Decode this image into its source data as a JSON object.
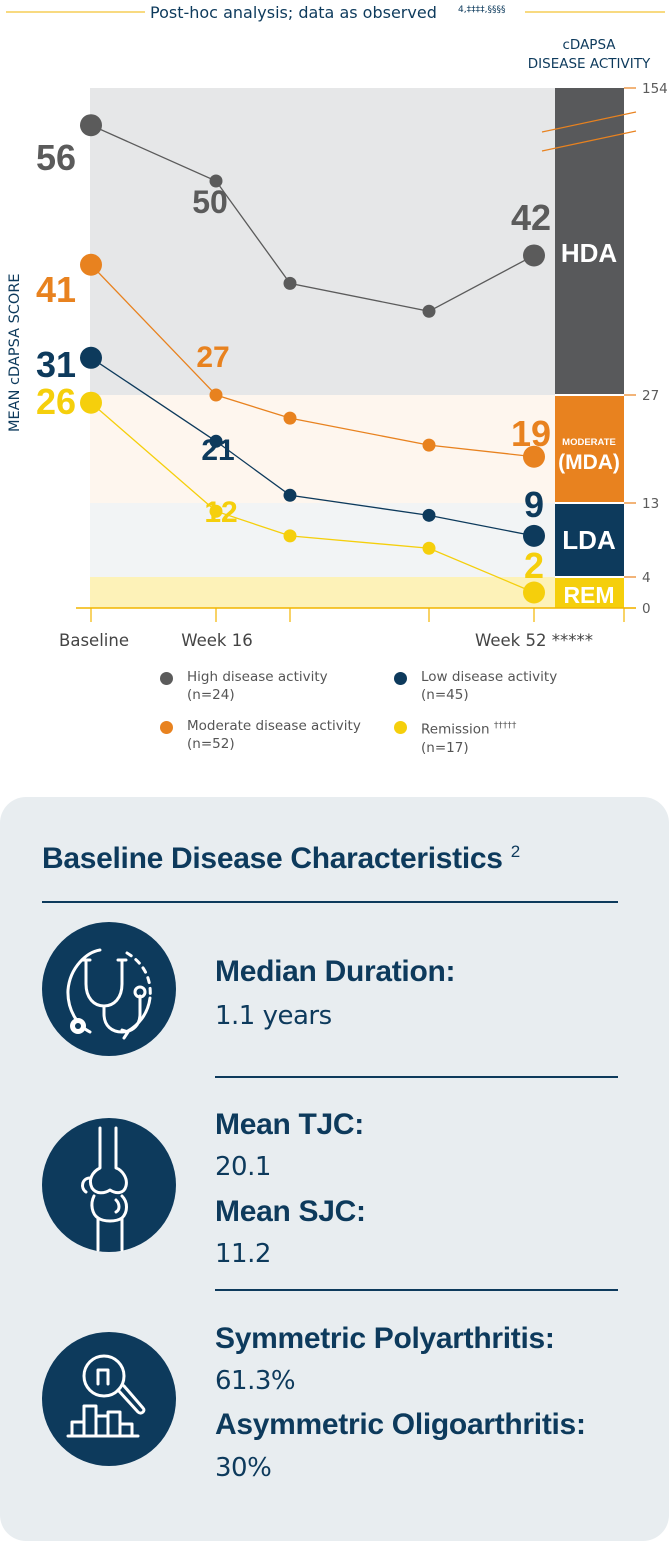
{
  "header": {
    "note": "Post-hoc analysis; data as observed",
    "note_refs": "4,‡‡‡‡,§§§§"
  },
  "chart_data": {
    "type": "line",
    "ylabel": "MEAN cDAPSA SCORE",
    "x_ticks": [
      {
        "x": 0,
        "label": "Baseline"
      },
      {
        "x": 16,
        "label": "Week 16"
      },
      {
        "x": 24,
        "label": ""
      },
      {
        "x": 40,
        "label": ""
      },
      {
        "x": 52,
        "label": "Week 52 *****"
      }
    ],
    "series": [
      {
        "name": "High disease activity",
        "n": "(n=24)",
        "color": "#5b5b5b",
        "x": [
          0,
          16,
          24,
          40,
          52
        ],
        "values": [
          56,
          50,
          39,
          36,
          42
        ],
        "labels": {
          "0": "56",
          "1": "50",
          "4": "42"
        }
      },
      {
        "name": "Moderate disease activity",
        "n": "(n=52)",
        "color": "#e8821f",
        "x": [
          0,
          16,
          24,
          40,
          52
        ],
        "values": [
          41,
          27,
          24,
          20.5,
          19
        ],
        "labels": {
          "0": "41",
          "1": "27",
          "4": "19"
        }
      },
      {
        "name": "Low disease activity",
        "n": "(n=45)",
        "color": "#0d3a5c",
        "x": [
          0,
          16,
          24,
          40,
          52
        ],
        "values": [
          31,
          21,
          14,
          11.5,
          9
        ],
        "labels": {
          "0": "31",
          "1": "21",
          "4": "9"
        }
      },
      {
        "name": "Remission",
        "name_ref": "†††††",
        "n": "(n=17)",
        "color": "#f5cf0c",
        "x": [
          0,
          16,
          24,
          40,
          52
        ],
        "values": [
          26,
          12,
          9,
          7.5,
          2
        ],
        "labels": {
          "0": "26",
          "1": "12",
          "4": "2"
        }
      }
    ],
    "activity_scale": {
      "title_line1": "cDAPSA",
      "title_line2": "DISEASE ACTIVITY",
      "ticks": [
        "154",
        "27",
        "13",
        "4",
        "0"
      ],
      "bands": [
        {
          "key": "hda",
          "label": "HDA",
          "color": "#58595b",
          "range": [
            27,
            154
          ]
        },
        {
          "key": "mda",
          "label_small": "MODERATE",
          "label": "(MDA)",
          "color": "#e8821f",
          "range": [
            13,
            27
          ]
        },
        {
          "key": "lda",
          "label": "LDA",
          "color": "#0d3a5c",
          "range": [
            4,
            13
          ]
        },
        {
          "key": "rem",
          "label": "REM",
          "color": "#f5cf0c",
          "range": [
            0,
            4
          ]
        }
      ]
    }
  },
  "card": {
    "title": "Baseline Disease Characteristics",
    "title_ref": "2",
    "sections": [
      {
        "icon": "stethoscope-icon",
        "stats": [
          {
            "label": "Median Duration:",
            "value": "1.1 years"
          }
        ]
      },
      {
        "icon": "knee-joint-icon",
        "stats": [
          {
            "label": "Mean TJC:",
            "value": "20.1"
          },
          {
            "label": "Mean SJC:",
            "value": "11.2"
          }
        ]
      },
      {
        "icon": "magnifier-chart-icon",
        "stats": [
          {
            "label": "Symmetric Polyarthritis:",
            "value": "61.3%"
          },
          {
            "label": "Asymmetric Oligoarthritis:",
            "value": "30%"
          }
        ]
      }
    ]
  }
}
